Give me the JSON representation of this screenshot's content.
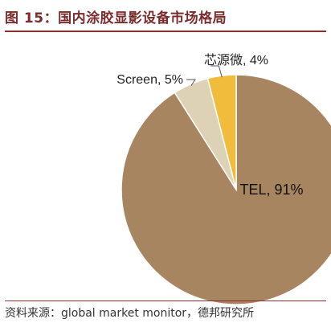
{
  "header": {
    "title": "图 15：国内涂胶显影设备市场格局"
  },
  "footer": {
    "source": "资料来源：global market monitor，德邦研究所"
  },
  "chart_data": {
    "type": "pie",
    "slices": [
      {
        "label": "TEL, 91%",
        "name": "TEL",
        "value": 91,
        "color": "#a88561"
      },
      {
        "label": "Screen, 5%",
        "name": "Screen",
        "value": 5,
        "color": "#ddd2b6"
      },
      {
        "label": "芯源微, 4%",
        "name": "芯源微",
        "value": 4,
        "color": "#f1bc3b"
      }
    ],
    "title": "",
    "legend": "none"
  }
}
